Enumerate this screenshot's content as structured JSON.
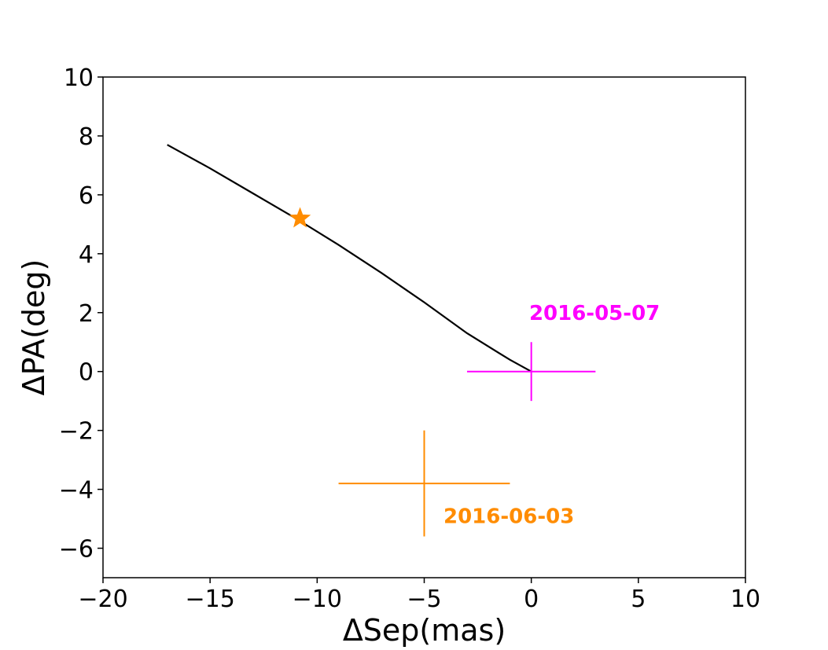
{
  "chart_data": {
    "type": "scatter",
    "title": "",
    "xlabel": "ΔSep(mas)",
    "ylabel": "ΔPA(deg)",
    "xlim": [
      -20,
      10
    ],
    "ylim": [
      -7,
      10
    ],
    "x_ticks": [
      -20,
      -15,
      -10,
      -5,
      0,
      5,
      10
    ],
    "y_ticks": [
      -6,
      -4,
      -2,
      0,
      2,
      4,
      6,
      8,
      10
    ],
    "x_tick_labels": [
      "−20",
      "−15",
      "−10",
      "−5",
      "0",
      "5",
      "10"
    ],
    "y_tick_labels": [
      "−6",
      "−4",
      "−2",
      "0",
      "2",
      "4",
      "6",
      "8",
      "10"
    ],
    "grid": false,
    "curve": {
      "color": "#000000",
      "x": [
        -17,
        -15,
        -13,
        -11,
        -9,
        -7,
        -5,
        -3,
        -1,
        0
      ],
      "y": [
        7.7,
        6.9,
        6.05,
        5.2,
        4.3,
        3.35,
        2.35,
        1.3,
        0.4,
        0
      ]
    },
    "marker": {
      "shape": "star",
      "x": -10.8,
      "y": 5.2,
      "color": "#ff8c00"
    },
    "series": [
      {
        "label": "2016-05-07",
        "color": "#ff00ff",
        "x": 0,
        "y": 0,
        "xerr": 3,
        "yerr": 1
      },
      {
        "label": "2016-06-03",
        "color": "#ff8c00",
        "x": -5,
        "y": -3.8,
        "xerr": 4,
        "yerr": 1.8
      }
    ],
    "annotations": [
      {
        "text": "2016-05-07",
        "x": -0.1,
        "y": 2.0,
        "color": "#ff00ff"
      },
      {
        "text": "2016-06-03",
        "x": -4.1,
        "y": -4.9,
        "color": "#ff8c00"
      }
    ]
  }
}
